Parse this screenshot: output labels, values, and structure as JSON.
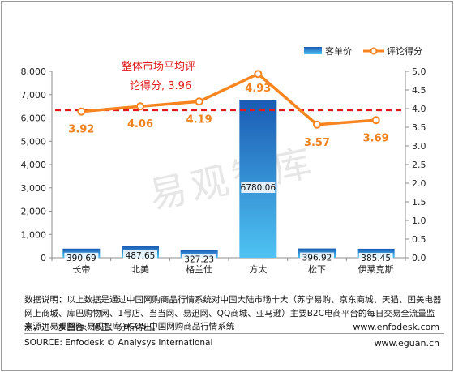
{
  "chart_data": {
    "type": "bar+line",
    "categories": [
      "长帝",
      "北美",
      "格兰仕",
      "方太",
      "松下",
      "伊莱克斯"
    ],
    "series": [
      {
        "name": "客单价",
        "type": "bar",
        "axis": "left",
        "values": [
          390.69,
          487.65,
          327.23,
          6780.06,
          396.92,
          385.45
        ]
      },
      {
        "name": "评论得分",
        "type": "line",
        "axis": "right",
        "values": [
          3.92,
          4.06,
          4.19,
          4.93,
          3.57,
          3.69
        ]
      }
    ],
    "bar_labels": [
      "390.69",
      "487.65",
      "327.23",
      "6780.06",
      "396.92",
      "385.45"
    ],
    "line_labels": [
      "3.92",
      "4.06",
      "4.19",
      "4.93",
      "3.57",
      "3.69"
    ],
    "left_axis": {
      "min": 0,
      "max": 8000,
      "step": 1000,
      "ticks": [
        "0",
        "1,000",
        "2,000",
        "3,000",
        "4,000",
        "5,000",
        "6,000",
        "7,000",
        "8,000"
      ]
    },
    "right_axis": {
      "min": 0,
      "max": 5,
      "step": 0.5,
      "ticks": [
        "0.0",
        "0.5",
        "1.0",
        "1.5",
        "2.0",
        "2.5",
        "3.0",
        "3.5",
        "4.0",
        "4.5",
        "5.0"
      ]
    },
    "reference_line": {
      "value": 3.96,
      "axis": "right",
      "label_line1": "整体市场平均评",
      "label_line2": "论得分, 3.96"
    },
    "legend": {
      "position": "top-right",
      "bar": "客单价",
      "line": "评论得分"
    },
    "watermark": "易观智库",
    "colors": {
      "bar_top": "#1a5bb3",
      "bar_bottom": "#4fc3f3",
      "line": "#f7841f",
      "reference": "#e01a1a",
      "line_label": "#f0821e",
      "ref_label": "#e01a1a"
    }
  },
  "footer": {
    "note": "数据说明：以上数据是通过中国网购商品行情系统对中国大陆市场十大（苏宁易购、京东商城、天猫、国美电器网上商城、库巴购物网、1号店、当当网、易迅网、QQ商城、亚马逊）主要B2C电商平台的每日交易全流量监测，进一步整合、修正、分析得出。",
    "source_cn": "来源：易观国际·易观智库·eCOS 中国网购商品行情系统",
    "source_en": "SOURCE: Enfodesk © Analysys International",
    "site1": "www.enfodesk.com",
    "site2": "www.eguan.cn"
  }
}
